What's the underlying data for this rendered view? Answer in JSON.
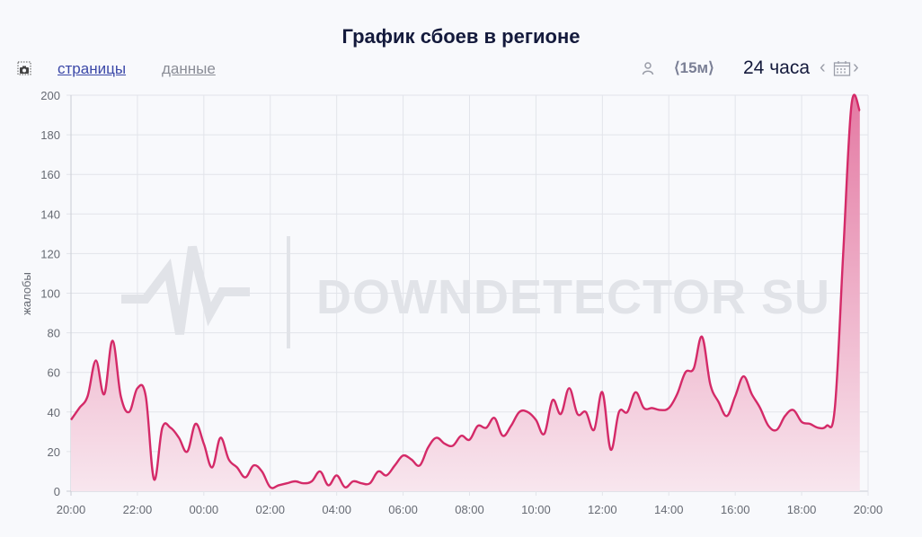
{
  "header": {
    "title": "График сбоев в регионе"
  },
  "toolbar": {
    "screenshot_icon": "camera-icon",
    "tabs": [
      {
        "label": "страницы",
        "active": true
      },
      {
        "label": "данные",
        "active": false
      }
    ],
    "user_icon": "user-icon",
    "interval_label": "⟨15м⟩",
    "range_label": "24 часа",
    "prev_label": "‹",
    "next_label": "›",
    "calendar_icon": "calendar-icon"
  },
  "colors": {
    "line": "#d42a68",
    "fill_top": "#e47aa3",
    "fill_bottom": "#f8e6ee",
    "title": "#141a3c",
    "link": "#3b48a8"
  },
  "watermark": "DOWNDETECTOR SU",
  "chart_data": {
    "type": "area",
    "title": "График сбоев в регионе",
    "xlabel": "",
    "ylabel": "жалобы",
    "ylim": [
      0,
      200
    ],
    "yticks": [
      0,
      20,
      40,
      60,
      80,
      100,
      120,
      140,
      160,
      180,
      200
    ],
    "xticks": [
      "20:00",
      "22:00",
      "00:00",
      "02:00",
      "04:00",
      "06:00",
      "08:00",
      "10:00",
      "12:00",
      "14:00",
      "16:00",
      "18:00",
      "20:00"
    ],
    "interval_minutes": 15,
    "grid": true,
    "legend": null,
    "values": [
      36,
      42,
      48,
      66,
      49,
      76,
      48,
      40,
      52,
      48,
      6,
      32,
      32,
      27,
      20,
      34,
      24,
      12,
      27,
      16,
      12,
      7,
      13,
      10,
      2,
      3,
      4,
      5,
      4,
      5,
      10,
      3,
      8,
      2,
      5,
      4,
      4,
      10,
      8,
      13,
      18,
      16,
      13,
      22,
      27,
      24,
      23,
      28,
      26,
      33,
      32,
      37,
      28,
      33,
      40,
      40,
      36,
      29,
      46,
      39,
      52,
      39,
      40,
      31,
      50,
      21,
      40,
      40,
      50,
      42,
      42,
      41,
      42,
      49,
      60,
      62,
      78,
      54,
      45,
      38,
      48,
      58,
      49,
      42,
      33,
      31,
      38,
      41,
      35,
      34,
      32,
      33,
      42,
      120,
      195,
      192
    ]
  }
}
